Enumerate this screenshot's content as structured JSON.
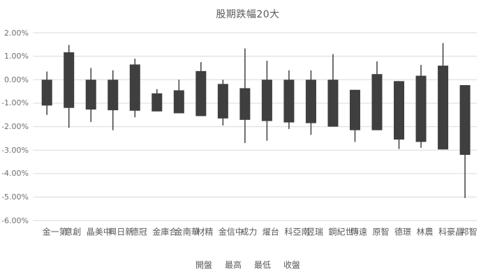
{
  "chart_data": {
    "type": "candlestick",
    "title": "股期跌幅20大",
    "categories": [
      "第一金",
      "創意",
      "中美晶",
      "新日興",
      "冠德",
      "合庫金",
      "華南金",
      "精材",
      "中信金",
      "力成",
      "台燿",
      "南亞科",
      "瑞昱",
      "世紀鋼",
      "遠傳",
      "智原",
      "璟德",
      "農林",
      "晶豪科",
      "智邦"
    ],
    "series": [
      {
        "name": "開盤",
        "values": [
          0.0,
          1.17,
          0.0,
          0.0,
          0.65,
          -0.58,
          -0.45,
          0.37,
          -0.18,
          -0.36,
          0.0,
          0.0,
          0.0,
          0.0,
          -0.43,
          0.24,
          -0.06,
          0.17,
          0.6,
          -0.23
        ]
      },
      {
        "name": "最高",
        "values": [
          0.35,
          1.48,
          0.5,
          0.4,
          0.9,
          -0.4,
          0.0,
          0.75,
          0.0,
          1.33,
          0.81,
          0.4,
          0.4,
          1.09,
          -0.43,
          0.78,
          -0.06,
          0.63,
          1.56,
          -0.23
        ]
      },
      {
        "name": "最低",
        "values": [
          -1.5,
          -2.05,
          -1.8,
          -2.15,
          -1.6,
          -1.35,
          -1.43,
          -1.55,
          -1.95,
          -2.7,
          -2.6,
          -2.1,
          -2.35,
          -2.0,
          -2.65,
          -2.15,
          -2.95,
          -2.9,
          -2.97,
          -5.04
        ]
      },
      {
        "name": "收盤",
        "values": [
          -1.1,
          -1.2,
          -1.27,
          -1.3,
          -1.32,
          -1.35,
          -1.43,
          -1.55,
          -1.65,
          -1.71,
          -1.76,
          -1.82,
          -1.85,
          -2.0,
          -2.15,
          -2.15,
          -2.55,
          -2.65,
          -2.97,
          -3.2
        ]
      }
    ],
    "ylim": [
      -6,
      2
    ],
    "ytick_labels": [
      "2.00%",
      "1.00%",
      "0.00%",
      "-1.00%",
      "-2.00%",
      "-3.00%",
      "-4.00%",
      "-5.00%",
      "-6.00%"
    ],
    "grid": true,
    "legend_position": "bottom",
    "legend_labels": [
      "開盤",
      "最高",
      "最低",
      "收盤"
    ],
    "colors": {
      "candle": "#3f3f3f",
      "grid": "#d9d9d9",
      "axis_text": "#6f6f6f",
      "category_text": "#595959",
      "title_text": "#595959",
      "background": "#ffffff"
    }
  }
}
